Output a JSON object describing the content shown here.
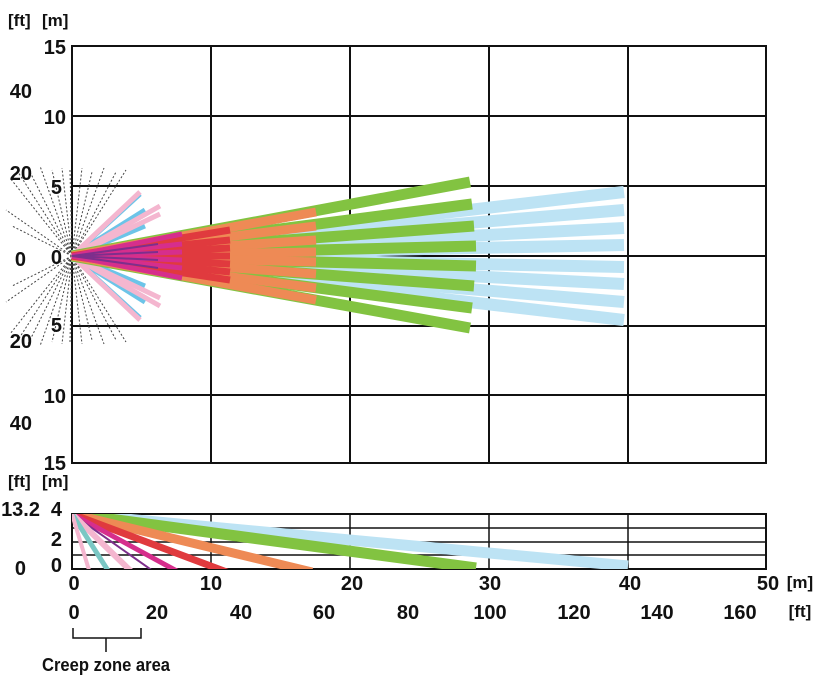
{
  "top_view": {
    "unit_ft": "[ft]",
    "unit_m": "[m]",
    "y_m_ticks": [
      "15",
      "10",
      "5",
      "0",
      "5",
      "10",
      "15"
    ],
    "y_ft_ticks": [
      "40",
      "20",
      "0",
      "20",
      "40"
    ]
  },
  "side_view": {
    "unit_ft": "[ft]",
    "unit_m": "[m]",
    "y_m_ticks": [
      "4",
      "2",
      "0"
    ],
    "y_ft_ticks": [
      "13.2",
      "0"
    ]
  },
  "x_axis": {
    "m_ticks": [
      "0",
      "10",
      "20",
      "30",
      "40",
      "50"
    ],
    "m_unit": "[m]",
    "ft_ticks": [
      "0",
      "20",
      "40",
      "60",
      "80",
      "100",
      "120",
      "140",
      "160"
    ],
    "ft_unit": "[ft]"
  },
  "creep_zone_label": "Creep zone area",
  "colors": {
    "grid": "#111111",
    "creep_dash": "#444444",
    "zones": [
      "#6cc4e8",
      "#f4b6cf",
      "#7d2f8c",
      "#d62e8c",
      "#e03a3e",
      "#ee8a55",
      "#82c341",
      "#bde3f4"
    ]
  }
}
